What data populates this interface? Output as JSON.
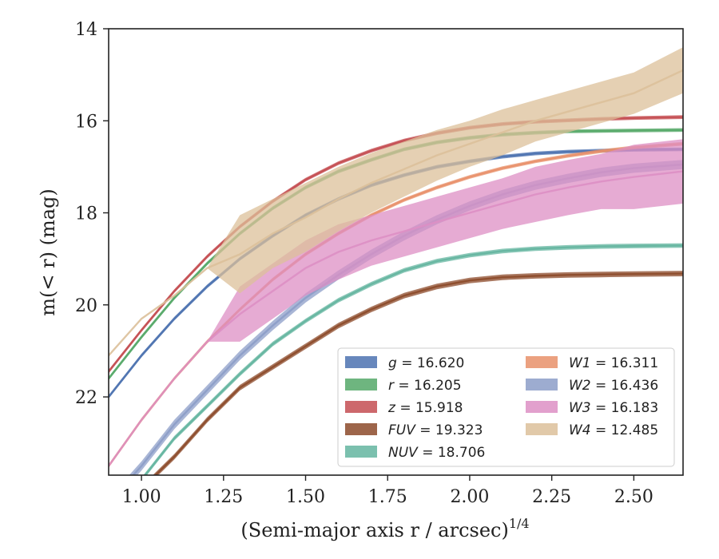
{
  "chart_data": {
    "type": "area",
    "xlabel": "(Semi-major axis r / arcsec)",
    "xlabel_superscript": "1/4",
    "ylabel": "m(< r) (mag)",
    "xlim": [
      0.9,
      2.65
    ],
    "ylim": [
      23.7,
      14.0
    ],
    "y_inverted": true,
    "grid": false,
    "legend_placement": "lower-right",
    "xticks": [
      1.0,
      1.25,
      1.5,
      1.75,
      2.0,
      2.25,
      2.5
    ],
    "xtick_labels": [
      "1.00",
      "1.25",
      "1.50",
      "1.75",
      "2.00",
      "2.25",
      "2.50"
    ],
    "yticks": [
      14,
      16,
      18,
      20,
      22
    ],
    "ytick_labels": [
      "14",
      "16",
      "18",
      "20",
      "22"
    ],
    "series": [
      {
        "name": "g = 16.620",
        "band_label": "g",
        "value_label": "16.620",
        "color": "#4c72b0",
        "x": [
          0.9,
          1.0,
          1.1,
          1.2,
          1.3,
          1.4,
          1.5,
          1.6,
          1.7,
          1.8,
          1.9,
          2.0,
          2.1,
          2.2,
          2.3,
          2.4,
          2.5,
          2.65
        ],
        "y": [
          22.0,
          21.1,
          20.3,
          19.6,
          19.0,
          18.5,
          18.05,
          17.7,
          17.4,
          17.18,
          17.0,
          16.88,
          16.78,
          16.71,
          16.67,
          16.65,
          16.63,
          16.62
        ],
        "half_width": 0.04
      },
      {
        "name": "r = 16.205",
        "band_label": "r",
        "value_label": "16.205",
        "color": "#55a868",
        "x": [
          0.9,
          1.0,
          1.1,
          1.2,
          1.3,
          1.4,
          1.5,
          1.6,
          1.7,
          1.8,
          1.9,
          2.0,
          2.1,
          2.2,
          2.3,
          2.4,
          2.5,
          2.65
        ],
        "y": [
          21.6,
          20.7,
          19.85,
          19.1,
          18.45,
          17.9,
          17.45,
          17.1,
          16.85,
          16.62,
          16.47,
          16.37,
          16.3,
          16.26,
          16.23,
          16.22,
          16.21,
          16.2
        ],
        "half_width": 0.04
      },
      {
        "name": "z = 15.918",
        "band_label": "z",
        "value_label": "15.918",
        "color": "#c44e52",
        "x": [
          0.9,
          1.0,
          1.1,
          1.2,
          1.3,
          1.4,
          1.5,
          1.6,
          1.7,
          1.8,
          1.9,
          2.0,
          2.1,
          2.2,
          2.3,
          2.4,
          2.5,
          2.65
        ],
        "y": [
          21.45,
          20.55,
          19.7,
          18.95,
          18.3,
          17.75,
          17.28,
          16.92,
          16.65,
          16.43,
          16.27,
          16.15,
          16.07,
          16.02,
          15.99,
          15.96,
          15.94,
          15.92
        ],
        "half_width": 0.04
      },
      {
        "name": "FUV = 19.323",
        "band_label": "FUV",
        "value_label": "19.323",
        "color": "#8c4a2a",
        "x": [
          0.92,
          1.0,
          1.1,
          1.2,
          1.3,
          1.4,
          1.5,
          1.6,
          1.7,
          1.8,
          1.9,
          2.0,
          2.1,
          2.2,
          2.3,
          2.4,
          2.5,
          2.65
        ],
        "y": [
          24.8,
          24.0,
          23.3,
          22.5,
          21.8,
          21.35,
          20.9,
          20.45,
          20.1,
          19.8,
          19.6,
          19.47,
          19.4,
          19.37,
          19.35,
          19.34,
          19.33,
          19.32
        ],
        "half_width": 0.06
      },
      {
        "name": "NUV = 18.706",
        "band_label": "NUV",
        "value_label": "18.706",
        "color": "#64b5a0",
        "x": [
          0.9,
          1.0,
          1.1,
          1.2,
          1.3,
          1.4,
          1.5,
          1.6,
          1.7,
          1.8,
          1.9,
          2.0,
          2.1,
          2.2,
          2.3,
          2.4,
          2.5,
          2.65
        ],
        "y": [
          24.6,
          23.8,
          22.9,
          22.2,
          21.5,
          20.85,
          20.35,
          19.9,
          19.55,
          19.25,
          19.05,
          18.92,
          18.83,
          18.78,
          18.75,
          18.73,
          18.72,
          18.71
        ],
        "half_width": 0.05
      },
      {
        "name": "W1 = 16.311",
        "band_label": "W1",
        "value_label": "16.311",
        "color": "#e8906a",
        "x": [
          0.9,
          1.0,
          1.1,
          1.2,
          1.3,
          1.4,
          1.5,
          1.6,
          1.7,
          1.8,
          1.9,
          2.0,
          2.1,
          2.2,
          2.3,
          2.4,
          2.5,
          2.65
        ],
        "y": [
          23.5,
          22.5,
          21.6,
          20.8,
          20.1,
          19.45,
          18.9,
          18.45,
          18.05,
          17.72,
          17.45,
          17.22,
          17.03,
          16.88,
          16.76,
          16.66,
          16.58,
          16.5
        ],
        "half_width": 0.04
      },
      {
        "name": "W2 = 16.436",
        "band_label": "W2",
        "value_label": "16.436",
        "color": "#8c9dc8",
        "x": [
          0.9,
          1.0,
          1.1,
          1.2,
          1.3,
          1.4,
          1.5,
          1.6,
          1.7,
          1.8,
          1.9,
          2.0,
          2.1,
          2.2,
          2.3,
          2.4,
          2.5,
          2.65
        ],
        "y": [
          24.3,
          23.5,
          22.6,
          21.85,
          21.1,
          20.45,
          19.85,
          19.35,
          18.9,
          18.5,
          18.15,
          17.85,
          17.6,
          17.4,
          17.25,
          17.12,
          17.03,
          16.95
        ],
        "half_width": 0.1
      },
      {
        "name": "W3 = 16.183",
        "band_label": "W3",
        "value_label": "16.183",
        "color": "#dd8fc4",
        "x": [
          0.9,
          1.0,
          1.1,
          1.2,
          1.3,
          1.4,
          1.5,
          1.6,
          1.7,
          1.8,
          1.9,
          2.0,
          2.1,
          2.2,
          2.3,
          2.4,
          2.5,
          2.65
        ],
        "y": [
          23.5,
          22.5,
          21.6,
          20.8,
          20.2,
          19.7,
          19.2,
          18.85,
          18.6,
          18.4,
          18.2,
          18.0,
          17.8,
          17.6,
          17.45,
          17.32,
          17.22,
          17.1
        ],
        "half_width_x": [
          0.0,
          0.0,
          0.0,
          0.0,
          0.6,
          0.6,
          0.6,
          0.6,
          0.55,
          0.55,
          0.55,
          0.55,
          0.55,
          0.6,
          0.6,
          0.6,
          0.7,
          0.7
        ]
      },
      {
        "name": "W4 = 12.485",
        "band_label": "W4",
        "value_label": "12.485",
        "color": "#dcc09a",
        "x": [
          0.9,
          1.0,
          1.1,
          1.2,
          1.3,
          1.4,
          1.5,
          1.6,
          1.7,
          1.8,
          1.9,
          2.0,
          2.1,
          2.2,
          2.3,
          2.4,
          2.5,
          2.65
        ],
        "y": [
          21.1,
          20.3,
          19.8,
          19.2,
          18.9,
          18.45,
          18.1,
          17.7,
          17.35,
          17.05,
          16.75,
          16.5,
          16.25,
          16.0,
          15.8,
          15.6,
          15.4,
          14.9
        ],
        "half_width_x": [
          0.0,
          0.0,
          0.0,
          0.0,
          0.85,
          0.75,
          0.75,
          0.7,
          0.65,
          0.6,
          0.55,
          0.5,
          0.5,
          0.45,
          0.45,
          0.45,
          0.45,
          0.5
        ]
      }
    ]
  }
}
